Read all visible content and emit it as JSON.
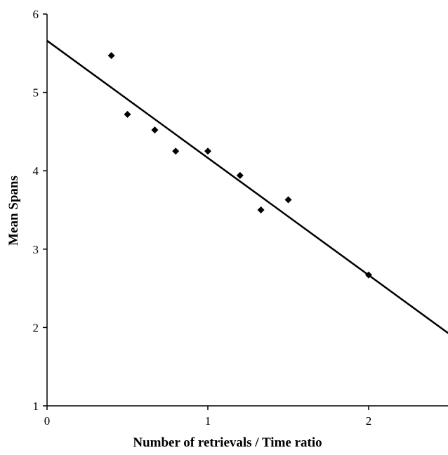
{
  "chart_data": {
    "type": "scatter",
    "title": "",
    "xlabel": "Number of retrievals / Time ratio",
    "ylabel": "Mean Spans",
    "xlim": [
      0,
      2.5
    ],
    "ylim": [
      1,
      6
    ],
    "x_ticks": [
      "0",
      "1",
      "2"
    ],
    "y_ticks": [
      "1",
      "2",
      "3",
      "4",
      "5",
      "6"
    ],
    "grid": false,
    "legend": "none",
    "marker": "diamond",
    "color": "#000000",
    "points": [
      {
        "x": 0.4,
        "y": 5.47
      },
      {
        "x": 0.5,
        "y": 4.72
      },
      {
        "x": 0.67,
        "y": 4.52
      },
      {
        "x": 0.8,
        "y": 4.25
      },
      {
        "x": 1.0,
        "y": 4.25
      },
      {
        "x": 1.2,
        "y": 3.94
      },
      {
        "x": 1.33,
        "y": 3.5
      },
      {
        "x": 1.5,
        "y": 3.63
      },
      {
        "x": 2.0,
        "y": 2.67
      }
    ],
    "trendline": {
      "type": "linear",
      "x": [
        0,
        2.5
      ],
      "y": [
        5.66,
        1.92
      ]
    }
  }
}
